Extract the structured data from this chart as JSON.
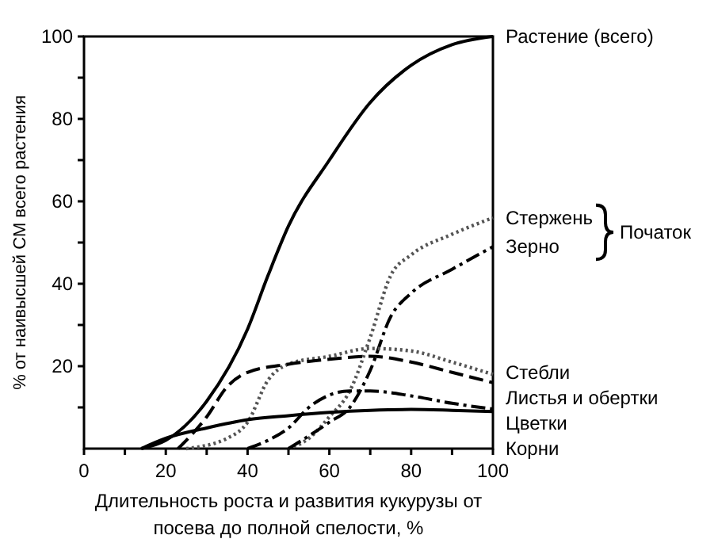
{
  "chart_data": {
    "type": "line",
    "xlabel": "Длительность роста и развития кукурузы от\nпосева до полной спелости, %",
    "ylabel": "% от наивысшей СМ всего растения",
    "xlim": [
      0,
      100
    ],
    "ylim": [
      0,
      100
    ],
    "xticks": [
      0,
      {
        "value": 10,
        "label": null
      },
      20,
      {
        "value": 30,
        "label": null
      },
      40,
      {
        "value": 50,
        "label": null
      },
      60,
      {
        "value": 70,
        "label": null
      },
      80,
      {
        "value": 90,
        "label": null
      },
      100
    ],
    "yticks": [
      {
        "value": 10,
        "label": null
      },
      20,
      {
        "value": 30,
        "label": null
      },
      40,
      {
        "value": 50,
        "label": null
      },
      60,
      {
        "value": 70,
        "label": null
      },
      80,
      {
        "value": 90,
        "label": null
      },
      100
    ],
    "grid": false,
    "legend": false,
    "annotations": [
      "Початок"
    ],
    "series": [
      {
        "name": "Растение (всего)",
        "color": "#000000",
        "line_style": "solid",
        "x": [
          14,
          20,
          30,
          40,
          45,
          50,
          60,
          70,
          80,
          90,
          100
        ],
        "values": [
          0,
          2,
          11.5,
          29,
          42,
          54,
          70,
          84,
          93,
          98,
          100
        ]
      },
      {
        "name": "Стержень",
        "color": "#555555",
        "line_style": "dotted",
        "x": [
          50,
          55,
          60,
          65,
          70,
          75,
          80,
          90,
          100
        ],
        "values": [
          0,
          2.5,
          7.7,
          14,
          27,
          42,
          47,
          52,
          56
        ]
      },
      {
        "name": "Зерно",
        "color": "#000000",
        "line_style": "dashdot",
        "x": [
          50,
          60,
          65,
          70,
          75,
          80,
          90,
          100
        ],
        "values": [
          0,
          6.4,
          10,
          19,
          32,
          37.7,
          43.5,
          49
        ]
      },
      {
        "name": "Стебли",
        "color": "#555555",
        "line_style": "dotted",
        "x": [
          25,
          35,
          40,
          45,
          50,
          60,
          70,
          80,
          90,
          100
        ],
        "values": [
          0,
          2.5,
          6.4,
          16.6,
          20.5,
          22.4,
          24.3,
          23.7,
          21,
          18
        ]
      },
      {
        "name": "Листья и обертки",
        "color": "#000000",
        "line_style": "dashed",
        "x": [
          23,
          30,
          35,
          40,
          50,
          60,
          70,
          80,
          90,
          100
        ],
        "values": [
          0,
          7.7,
          15,
          18.5,
          20.5,
          21.7,
          22.4,
          21,
          18.5,
          16
        ]
      },
      {
        "name": "Цветки",
        "color": "#000000",
        "line_style": "dashdot",
        "x": [
          40,
          45,
          50,
          55,
          60,
          65,
          70,
          80,
          90,
          100
        ],
        "values": [
          0,
          2,
          5,
          10,
          13,
          14,
          14,
          12.8,
          11,
          9.6
        ]
      },
      {
        "name": "Корни",
        "color": "#000000",
        "line_style": "solid",
        "x": [
          14,
          20,
          30,
          40,
          50,
          60,
          70,
          80,
          90,
          100
        ],
        "values": [
          0,
          2.5,
          5,
          7,
          8,
          8.8,
          9.3,
          9.5,
          9.3,
          9
        ]
      }
    ]
  }
}
